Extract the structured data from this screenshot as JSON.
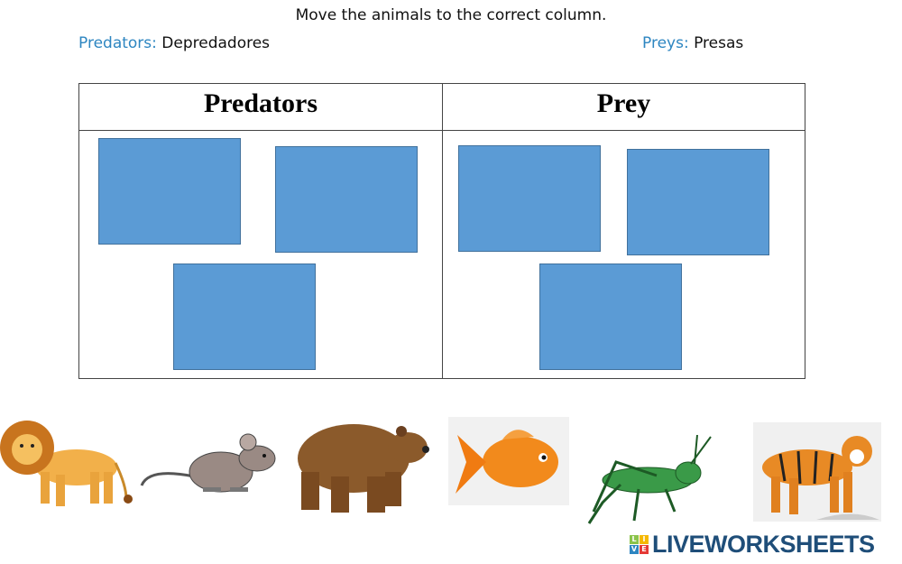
{
  "instructions": "Move the animals to the correct column.",
  "glossary": [
    {
      "term": "Predators:",
      "translation": "Depredadores"
    },
    {
      "term": "Preys:",
      "translation": "Presas"
    }
  ],
  "table": {
    "columns": [
      {
        "header": "Predators"
      },
      {
        "header": "Prey"
      }
    ],
    "drop_zone_color": "#5b9bd5"
  },
  "animals": [
    "lion-icon",
    "mouse-icon",
    "bear-icon",
    "fish-icon",
    "grasshopper-icon",
    "tiger-icon"
  ],
  "logo": {
    "text": "LIVEWORKSHEETS",
    "badge": [
      "L",
      "I",
      "V",
      "E"
    ]
  }
}
